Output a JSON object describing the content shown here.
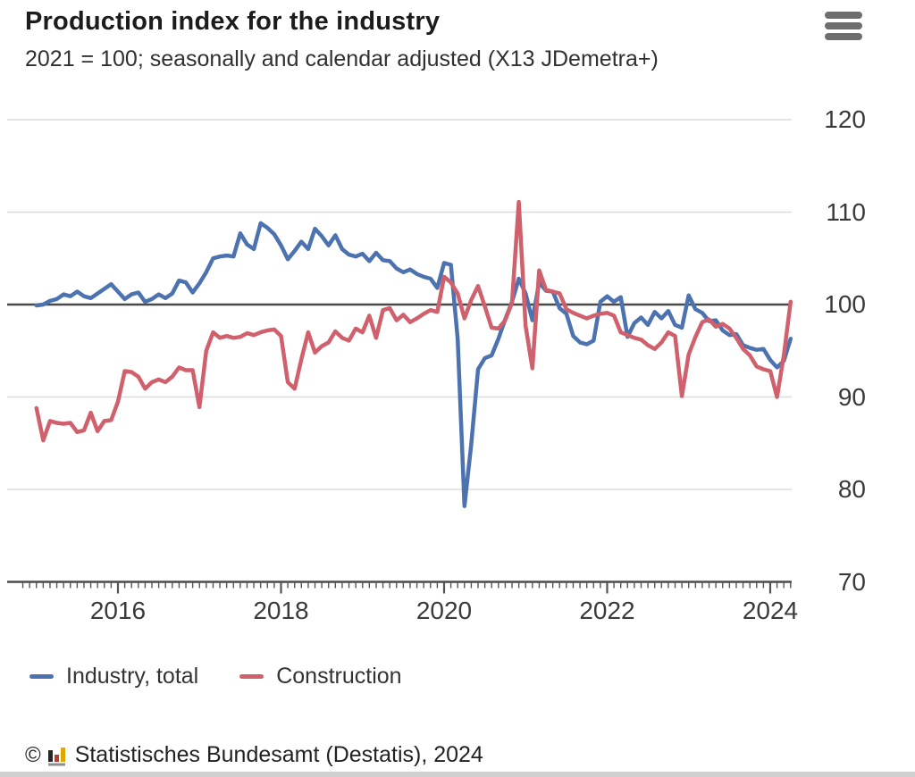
{
  "header": {
    "title": "Production index for the industry",
    "subtitle": "2021 = 100; seasonally and calendar adjusted (X13 JDemetra+)",
    "menu_icon": "hamburger-menu"
  },
  "legend": {
    "items": [
      {
        "label": "Industry, total"
      },
      {
        "label": "Construction"
      }
    ]
  },
  "footer": {
    "copyright_symbol": "©",
    "logo_icon": "destatis-bar-chart-logo",
    "text": "Statistisches Bundesamt (Destatis), 2024"
  },
  "colors": {
    "industry_line": "#4d72b0",
    "construction_line": "#d0606c",
    "gridline": "#dcdcdc",
    "axis": "#4a4a4a",
    "label_text": "#3a3a3a",
    "logo_dark": "#262626",
    "logo_red": "#c0392b",
    "logo_gold": "#e0a800",
    "logo_base": "#8f8f8f"
  },
  "chart_data": {
    "type": "line",
    "title": "Production index for the industry",
    "subtitle": "2021 = 100; seasonally and calendar adjusted (X13 JDemetra+)",
    "frequency": "monthly",
    "start": "2015-01",
    "end": "2024-04",
    "ylim": [
      70,
      120
    ],
    "grid": true,
    "legend_position": "bottom",
    "y_axis": {
      "min": 70,
      "max": 120,
      "ticks": [
        120,
        110,
        100,
        90,
        80,
        70
      ],
      "reference_value": 100
    },
    "x_axis": {
      "start_year": 2015,
      "minor_tick_unit": "month",
      "labeled_years": [
        2016,
        2018,
        2020,
        2022,
        2024
      ]
    },
    "series": [
      {
        "name": "Industry, total",
        "color": "#4d72b0",
        "values": [
          99.9,
          100.0,
          100.4,
          100.6,
          101.1,
          100.9,
          101.4,
          100.9,
          100.7,
          101.2,
          101.7,
          102.2,
          101.4,
          100.6,
          101.1,
          101.3,
          100.3,
          100.6,
          101.1,
          100.7,
          101.2,
          102.6,
          102.4,
          101.3,
          102.3,
          103.5,
          105.0,
          105.2,
          105.3,
          105.2,
          107.7,
          106.5,
          106.0,
          108.8,
          108.3,
          107.6,
          106.4,
          104.9,
          105.8,
          106.8,
          106.0,
          108.2,
          107.4,
          106.4,
          107.5,
          106.0,
          105.4,
          105.2,
          105.5,
          104.7,
          105.6,
          104.8,
          104.7,
          103.9,
          103.5,
          103.8,
          103.3,
          103.0,
          102.8,
          101.8,
          104.5,
          104.3,
          96.3,
          78.2,
          84.9,
          93.0,
          94.2,
          94.5,
          96.3,
          98.4,
          100.3,
          102.8,
          101.2,
          98.3,
          102.4,
          101.5,
          101.4,
          99.6,
          99.0,
          96.6,
          95.9,
          95.7,
          96.1,
          100.3,
          100.9,
          100.3,
          100.8,
          96.5,
          98.0,
          98.6,
          97.8,
          99.2,
          98.5,
          99.3,
          97.8,
          97.5,
          101.0,
          99.5,
          99.1,
          98.2,
          98.3,
          97.2,
          96.7,
          96.8,
          95.6,
          95.3,
          95.1,
          95.2,
          94.0,
          93.2,
          93.9,
          96.3
        ]
      },
      {
        "name": "Construction",
        "color": "#d0606c",
        "values": [
          88.8,
          85.3,
          87.4,
          87.2,
          87.1,
          87.2,
          86.2,
          86.4,
          88.3,
          86.3,
          87.4,
          87.5,
          89.5,
          92.8,
          92.7,
          92.2,
          90.9,
          91.6,
          91.9,
          91.6,
          92.2,
          93.2,
          92.9,
          92.9,
          88.9,
          95.0,
          97.0,
          96.4,
          96.6,
          96.4,
          96.5,
          96.9,
          96.7,
          97.0,
          97.2,
          97.3,
          96.6,
          91.6,
          90.9,
          94.1,
          97.0,
          94.8,
          95.5,
          95.9,
          97.1,
          96.4,
          96.1,
          97.4,
          97.0,
          98.8,
          96.4,
          99.4,
          99.6,
          98.3,
          98.9,
          98.1,
          98.5,
          99.0,
          99.4,
          99.2,
          103.0,
          102.4,
          101.2,
          98.5,
          100.5,
          102.0,
          99.8,
          97.5,
          97.4,
          98.3,
          100.2,
          111.1,
          97.7,
          93.1,
          103.7,
          101.6,
          101.4,
          101.2,
          99.5,
          99.1,
          98.8,
          98.5,
          98.8,
          99.0,
          99.1,
          98.8,
          97.0,
          96.7,
          96.4,
          96.2,
          95.6,
          95.2,
          95.9,
          97.0,
          96.6,
          90.1,
          94.6,
          96.5,
          98.1,
          98.4,
          97.6,
          97.9,
          97.4,
          96.4,
          95.2,
          94.5,
          93.3,
          93.0,
          92.8,
          90.0,
          94.5,
          100.3
        ]
      }
    ]
  }
}
